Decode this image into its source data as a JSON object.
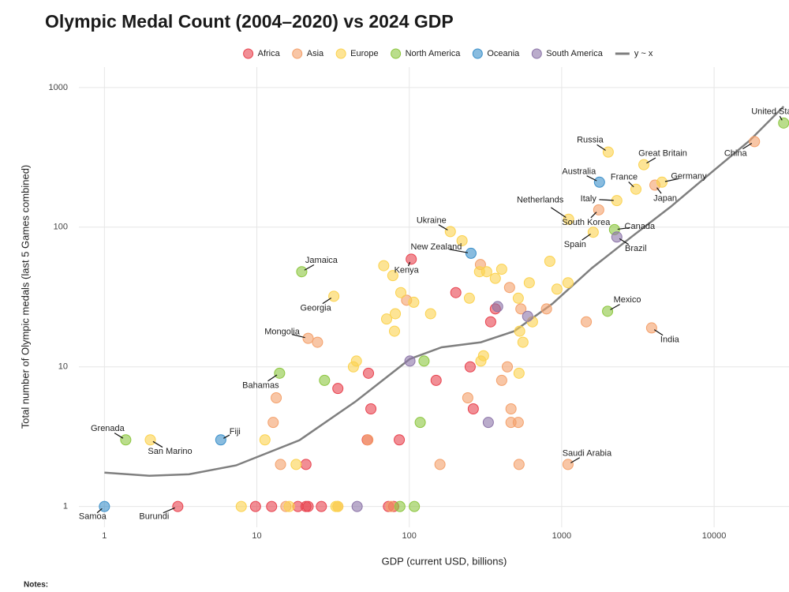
{
  "chart_data": {
    "type": "scatter",
    "title": "Olympic Medal Count (2004–2020) vs 2024 GDP",
    "x_label": "GDP (current USD, billions)",
    "y_label": "Total number of Olympic medals (last 5 Games combined)",
    "footnote": "Notes:",
    "log_x": true,
    "log_y": true,
    "grid": true,
    "legend": "top",
    "xlim": [
      0.68,
      31000
    ],
    "ylim": [
      0.71,
      1400
    ],
    "xticks": [
      1,
      10,
      100,
      1000,
      10000
    ],
    "yticks": [
      1,
      10,
      100,
      1000
    ],
    "series": [
      {
        "name": "Africa",
        "color": "#e8434f",
        "x": [
          3.03,
          103,
          202,
          367,
          342,
          54,
          34,
          56,
          150,
          251,
          263,
          53,
          86,
          21,
          9.8,
          12.5,
          18.6,
          21,
          21.7,
          26.5,
          73,
          79
        ],
        "values": [
          1,
          59,
          34,
          26,
          21,
          9,
          7,
          5,
          8,
          10,
          5,
          3,
          3,
          2,
          1,
          1,
          1,
          1,
          1,
          1,
          1,
          1
        ],
        "labels": [
          "Burundi",
          "Kenya",
          null,
          null,
          null,
          null,
          null,
          null,
          null,
          null,
          null,
          null,
          null,
          null,
          null,
          null,
          null,
          null,
          null,
          null,
          null,
          null
        ]
      },
      {
        "name": "Asia",
        "color": "#f4a06a",
        "x": [
          18400,
          4090,
          1750,
          3890,
          21.7,
          1100,
          293,
          96,
          455,
          540,
          795,
          1450,
          25,
          440,
          404,
          13.4,
          12.8,
          242,
          465,
          465,
          519,
          14.3,
          159,
          525,
          53.5,
          15.5,
          34,
          76
        ],
        "values": [
          410,
          200,
          133,
          19,
          16,
          2,
          54,
          30,
          37,
          26,
          26,
          21,
          15,
          10,
          8,
          6,
          4,
          6,
          5,
          4,
          4,
          2,
          2,
          2,
          3,
          1,
          1,
          1
        ],
        "labels": [
          "China",
          "Japan",
          "South Korea",
          "India",
          "Mongolia",
          "Saudi Arabia",
          null,
          null,
          null,
          null,
          null,
          null,
          null,
          null,
          null,
          null,
          null,
          null,
          null,
          null,
          null,
          null,
          null,
          null,
          null,
          null,
          null,
          null
        ]
      },
      {
        "name": "Europe",
        "color": "#fbd24e",
        "x": [
          2020,
          3460,
          4550,
          3070,
          2300,
          1110,
          1610,
          186,
          32,
          2.0,
          222,
          68,
          78,
          836,
          289,
          322,
          404,
          367,
          613,
          1100,
          931,
          88,
          107,
          248,
          519,
          71,
          81,
          138,
          643,
          80,
          530,
          557,
          45,
          43,
          307,
          295,
          525,
          11.3,
          18.1,
          7.9,
          16.3,
          33,
          34
        ],
        "values": [
          345,
          280,
          210,
          187,
          155,
          114,
          92,
          93,
          32,
          3,
          80,
          53,
          45,
          57,
          48,
          48,
          50,
          43,
          40,
          40,
          36,
          34,
          29,
          31,
          31,
          22,
          24,
          24,
          21,
          18,
          18,
          15,
          11,
          10,
          12,
          11,
          9,
          3,
          2,
          1,
          1,
          1,
          1
        ],
        "labels": [
          "Russia",
          "Great Britain",
          "Germany",
          "France",
          "Italy",
          "Netherlands",
          "Spain",
          "Ukraine",
          "Georgia",
          "San Marino",
          null,
          null,
          null,
          null,
          null,
          null,
          null,
          null,
          null,
          null,
          null,
          null,
          null,
          null,
          null,
          null,
          null,
          null,
          null,
          null,
          null,
          null,
          null,
          null,
          null,
          null,
          null,
          null,
          null,
          null,
          null,
          null,
          null
        ]
      },
      {
        "name": "North America",
        "color": "#8cc63f",
        "x": [
          28600,
          2220,
          2000,
          19.7,
          14.1,
          1.38,
          27.8,
          125,
          118,
          86.8,
          108
        ],
        "values": [
          557,
          96,
          25,
          48,
          9,
          3,
          8,
          11,
          4,
          1,
          1
        ],
        "labels": [
          "United States",
          "Canada",
          "Mexico",
          "Jamaica",
          "Bahamas",
          "Grenada",
          null,
          null,
          null,
          null,
          null
        ]
      },
      {
        "name": "Oceania",
        "color": "#3a8fc9",
        "x": [
          1770,
          254,
          5.8,
          1
        ],
        "values": [
          210,
          65,
          3,
          1
        ],
        "labels": [
          "Australia",
          "New Zealand",
          "Fiji",
          "Samoa"
        ]
      },
      {
        "name": "South America",
        "color": "#8c74a8",
        "x": [
          2300,
          380,
          598,
          101,
          330,
          45.5
        ],
        "values": [
          85,
          27,
          23,
          11,
          4,
          1
        ],
        "labels": [
          "Brazil",
          null,
          null,
          null,
          null,
          null
        ]
      }
    ],
    "trend": {
      "name": "y ~ x",
      "color": "#7f7f7f",
      "x": [
        1,
        1.97,
        3.58,
        7.3,
        19,
        44,
        101,
        163,
        295,
        488,
        870,
        1580,
        2860,
        5190,
        9400,
        17100,
        28600
      ],
      "values": [
        1.75,
        1.66,
        1.7,
        1.97,
        2.98,
        5.6,
        11.4,
        13.8,
        15.0,
        18,
        28.3,
        51,
        85,
        140,
        242,
        417,
        731
      ]
    }
  }
}
